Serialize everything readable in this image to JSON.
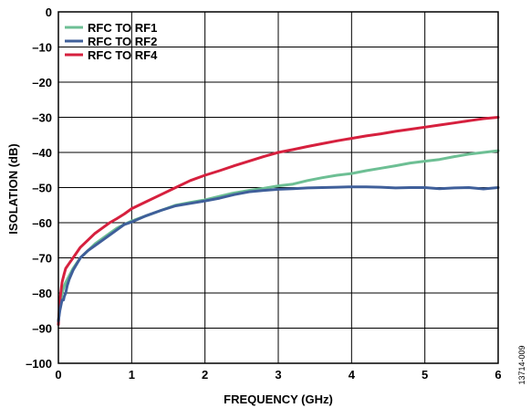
{
  "chart_data": {
    "type": "line",
    "xlabel": "FREQUENCY (GHz)",
    "ylabel": "ISOLATION (dB)",
    "xlim": [
      0,
      6
    ],
    "ylim": [
      -100,
      0
    ],
    "xticks": [
      0,
      1,
      2,
      3,
      4,
      5,
      6
    ],
    "yticks": [
      0,
      -10,
      -20,
      -30,
      -40,
      -50,
      -60,
      -70,
      -80,
      -90,
      -100
    ],
    "xtick_labels": [
      "0",
      "1",
      "2",
      "3",
      "4",
      "5",
      "6"
    ],
    "ytick_labels": [
      "0",
      "–10",
      "–20",
      "–30",
      "–40",
      "–50",
      "–60",
      "–70",
      "–80",
      "–90",
      "–100"
    ],
    "grid": true,
    "legend_position": "top-left",
    "series": [
      {
        "name": "RFC TO RF1",
        "color": "#6dbf94",
        "x": [
          0.0,
          0.02,
          0.05,
          0.08,
          0.1,
          0.15,
          0.2,
          0.3,
          0.4,
          0.5,
          0.6,
          0.7,
          0.8,
          0.9,
          1.0,
          1.2,
          1.4,
          1.6,
          1.8,
          2.0,
          2.2,
          2.4,
          2.6,
          2.8,
          3.0,
          3.2,
          3.4,
          3.6,
          3.8,
          4.0,
          4.2,
          4.4,
          4.6,
          4.8,
          5.0,
          5.2,
          5.4,
          5.6,
          5.8,
          6.0
        ],
        "y": [
          -88,
          -84,
          -80,
          -78,
          -77,
          -75,
          -73,
          -70,
          -68,
          -66,
          -64.5,
          -63,
          -61.5,
          -60.5,
          -59.5,
          -58,
          -56.5,
          -55,
          -54.2,
          -53.5,
          -52.5,
          -51.5,
          -50.8,
          -50.2,
          -49.5,
          -49,
          -48,
          -47.2,
          -46.5,
          -46,
          -45.2,
          -44.5,
          -43.8,
          -43,
          -42.5,
          -42,
          -41.2,
          -40.5,
          -40,
          -39.5
        ]
      },
      {
        "name": "RFC TO RF2",
        "color": "#3f5f9a",
        "x": [
          0.0,
          0.02,
          0.05,
          0.07,
          0.08,
          0.1,
          0.12,
          0.15,
          0.2,
          0.3,
          0.4,
          0.5,
          0.6,
          0.7,
          0.8,
          0.9,
          1.0,
          1.2,
          1.4,
          1.6,
          1.8,
          2.0,
          2.2,
          2.4,
          2.6,
          2.8,
          3.0,
          3.2,
          3.4,
          3.6,
          3.8,
          4.0,
          4.2,
          4.4,
          4.6,
          4.8,
          5.0,
          5.2,
          5.4,
          5.6,
          5.8,
          6.0
        ],
        "y": [
          -88,
          -85,
          -82,
          -82,
          -81,
          -80,
          -78,
          -76,
          -73.5,
          -70,
          -68,
          -66.5,
          -65,
          -63.5,
          -62,
          -60.5,
          -59.8,
          -58,
          -56.5,
          -55.2,
          -54.5,
          -53.8,
          -53,
          -52,
          -51.2,
          -50.8,
          -50.5,
          -50.3,
          -50.1,
          -50,
          -49.9,
          -49.8,
          -49.8,
          -49.9,
          -50.1,
          -50,
          -50,
          -50.3,
          -50.1,
          -50,
          -50.4,
          -50
        ]
      },
      {
        "name": "RFC TO RF4",
        "color": "#d6203e",
        "x": [
          0.0,
          0.02,
          0.05,
          0.08,
          0.1,
          0.15,
          0.2,
          0.3,
          0.4,
          0.5,
          0.6,
          0.7,
          0.8,
          0.9,
          1.0,
          1.2,
          1.4,
          1.6,
          1.8,
          2.0,
          2.2,
          2.4,
          2.6,
          2.8,
          3.0,
          3.2,
          3.4,
          3.6,
          3.8,
          4.0,
          4.2,
          4.4,
          4.6,
          4.8,
          5.0,
          5.2,
          5.4,
          5.6,
          5.8,
          6.0
        ],
        "y": [
          -89,
          -82,
          -77,
          -74.5,
          -73,
          -71.5,
          -70,
          -67,
          -65,
          -63,
          -61.5,
          -60,
          -58.8,
          -57.5,
          -56,
          -54,
          -52,
          -50,
          -48,
          -46.5,
          -45.2,
          -43.8,
          -42.5,
          -41.2,
          -40,
          -39.2,
          -38.3,
          -37.5,
          -36.7,
          -36,
          -35.3,
          -34.7,
          -34,
          -33.4,
          -32.8,
          -32.2,
          -31.6,
          -31,
          -30.4,
          -30
        ]
      }
    ]
  },
  "side_note": "13714-009"
}
